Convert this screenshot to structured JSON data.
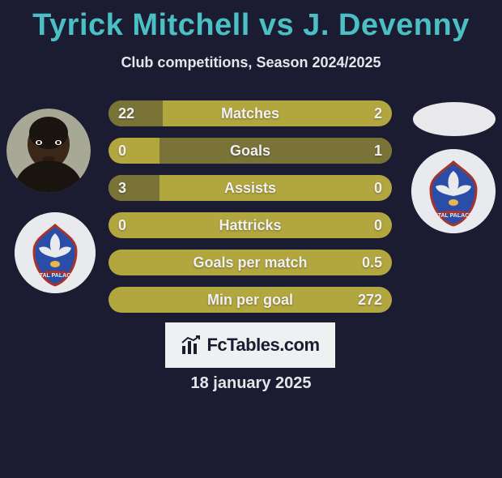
{
  "title": "Tyrick Mitchell vs J. Devenny",
  "subtitle": "Club competitions, Season 2024/2025",
  "date": "18 january 2025",
  "brand": "FcTables.com",
  "colors": {
    "background": "#1b1b31",
    "title": "#4ac0c5",
    "track": "#b2a63f",
    "fill": "#7a7338",
    "text": "#e6e6ea"
  },
  "stats": [
    {
      "label": "Matches",
      "left_value": "22",
      "right_value": "2",
      "left_pct": 19,
      "right_pct": 0
    },
    {
      "label": "Goals",
      "left_value": "0",
      "right_value": "1",
      "left_pct": 0,
      "right_pct": 82
    },
    {
      "label": "Assists",
      "left_value": "3",
      "right_value": "0",
      "left_pct": 18,
      "right_pct": 0
    },
    {
      "label": "Hattricks",
      "left_value": "0",
      "right_value": "0",
      "left_pct": 0,
      "right_pct": 0
    },
    {
      "label": "Goals per match",
      "left_value": "",
      "right_value": "0.5",
      "left_pct": 0,
      "right_pct": 0
    },
    {
      "label": "Min per goal",
      "left_value": "",
      "right_value": "272",
      "left_pct": 0,
      "right_pct": 0
    }
  ]
}
